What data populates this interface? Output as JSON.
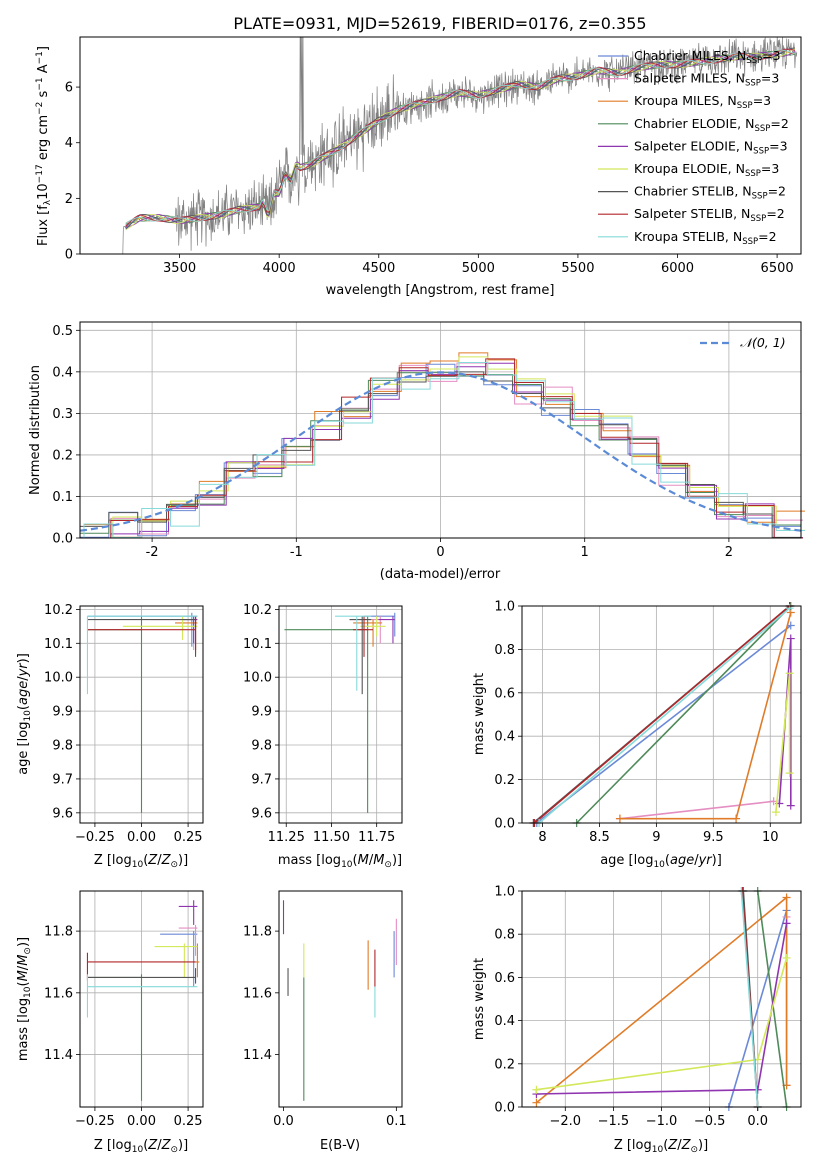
{
  "figure": {
    "title": "PLATE=0931, MJD=52619, FIBERID=0176, z=0.355",
    "colors": {
      "Chabrier MILES": "#6a89d6",
      "Salpeter MILES": "#e48ec2",
      "Kroupa MILES": "#e07b28",
      "Chabrier ELODIE": "#4f8a5a",
      "Salpeter ELODIE": "#9035b0",
      "Kroupa ELODIE": "#d3e85a",
      "Chabrier STELIB": "#555555",
      "Salpeter STELIB": "#b0272b",
      "Kroupa STELIB": "#86dada",
      "normal": "#5b8bd6"
    }
  },
  "chart_data": [
    {
      "type": "line",
      "panel": "spectrum",
      "xlabel": "wavelength [Angstrom, rest frame]",
      "ylabel": "Flux [f_λ10^-17 erg cm^-2 s^-1 A^-1]",
      "xlim": [
        3000,
        6620
      ],
      "ylim": [
        0,
        7.8
      ],
      "xticks": [
        3500,
        4000,
        4500,
        5000,
        5500,
        6000,
        6500
      ],
      "yticks": [
        0,
        2,
        4,
        6
      ],
      "grid": false,
      "legend_position": "top-right",
      "legend": [
        {
          "name": "Chabrier MILES, N",
          "sub": "SSP",
          "suffix": "=3"
        },
        {
          "name": "Salpeter MILES, N",
          "sub": "SSP",
          "suffix": "=3"
        },
        {
          "name": "Kroupa MILES, N",
          "sub": "SSP",
          "suffix": "=3"
        },
        {
          "name": "Chabrier ELODIE, N",
          "sub": "SSP",
          "suffix": "=2"
        },
        {
          "name": "Salpeter ELODIE, N",
          "sub": "SSP",
          "suffix": "=3"
        },
        {
          "name": "Kroupa ELODIE, N",
          "sub": "SSP",
          "suffix": "=3"
        },
        {
          "name": "Chabrier STELIB, N",
          "sub": "SSP",
          "suffix": "=2"
        },
        {
          "name": "Salpeter STELIB, N",
          "sub": "SSP",
          "suffix": "=2"
        },
        {
          "name": "Kroupa STELIB, N",
          "sub": "SSP",
          "suffix": "=2"
        }
      ],
      "continuum": {
        "x": [
          3210,
          3300,
          3400,
          3500,
          3600,
          3700,
          3800,
          3900,
          3950,
          4000,
          4050,
          4100,
          4150,
          4200,
          4300,
          4400,
          4500,
          4600,
          4700,
          4800,
          4900,
          5000,
          5100,
          5200,
          5300,
          5400,
          5500,
          5600,
          5700,
          5800,
          5900,
          6000,
          6100,
          6200,
          6300,
          6400,
          6500,
          6600
        ],
        "y": [
          0.9,
          1.3,
          1.3,
          1.2,
          1.3,
          1.4,
          1.6,
          1.7,
          1.6,
          2.4,
          2.8,
          3.1,
          3.2,
          3.4,
          3.8,
          4.3,
          4.8,
          5.2,
          5.4,
          5.6,
          5.8,
          5.7,
          5.9,
          6.1,
          6.0,
          6.3,
          6.4,
          6.6,
          6.5,
          6.7,
          6.8,
          6.8,
          6.9,
          7.0,
          7.1,
          7.1,
          7.2,
          7.3
        ]
      }
    },
    {
      "type": "line",
      "panel": "residual-histogram",
      "xlabel": "(data-model)/error",
      "ylabel": "Normed distribution",
      "xlim": [
        -2.5,
        2.5
      ],
      "ylim": [
        0,
        0.52
      ],
      "xticks": [
        -2,
        -1,
        0,
        1,
        2
      ],
      "yticks": [
        0.0,
        0.1,
        0.2,
        0.3,
        0.4,
        0.5
      ],
      "grid": true,
      "legend_position": "top-right",
      "legend": [
        {
          "name": "𝒩(0, 1)"
        }
      ],
      "bins": [
        -2.5,
        -2.3,
        -2.1,
        -1.9,
        -1.7,
        -1.5,
        -1.3,
        -1.1,
        -0.9,
        -0.7,
        -0.5,
        -0.3,
        -0.1,
        0.1,
        0.3,
        0.5,
        0.7,
        0.9,
        1.1,
        1.3,
        1.5,
        1.7,
        1.9,
        2.1,
        2.3,
        2.5
      ],
      "histogram_values": [
        0.01,
        0.03,
        0.04,
        0.06,
        0.11,
        0.15,
        0.17,
        0.21,
        0.27,
        0.31,
        0.36,
        0.39,
        0.41,
        0.42,
        0.4,
        0.35,
        0.33,
        0.3,
        0.26,
        0.21,
        0.15,
        0.12,
        0.08,
        0.06,
        0.03
      ]
    },
    {
      "type": "scatter",
      "panel": "age-vs-Z",
      "xlabel": "Z [log10(Z/Z⊙)]",
      "ylabel": "age [log10(age/yr)]",
      "xlim": [
        -0.33,
        0.33
      ],
      "ylim": [
        9.57,
        10.21
      ],
      "xticks": [
        -0.25,
        0.0,
        0.25
      ],
      "xticklabels": [
        "−0.25",
        "0.00",
        "0.25"
      ],
      "yticks": [
        9.6,
        9.7,
        9.8,
        9.9,
        10.0,
        10.1,
        10.2
      ],
      "grid": true
    },
    {
      "type": "scatter",
      "panel": "age-vs-mass",
      "xlabel": "mass [log10(M/M⊙)]",
      "xlim": [
        11.21,
        11.89
      ],
      "ylim": [
        9.57,
        10.21
      ],
      "xticks": [
        11.25,
        11.5,
        11.75
      ],
      "xticklabels": [
        "11.25",
        "11.50",
        "11.75"
      ],
      "yticks": [
        9.6,
        9.7,
        9.8,
        9.9,
        10.0,
        10.1,
        10.2
      ],
      "grid": true
    },
    {
      "type": "line",
      "panel": "weight-vs-age",
      "xlabel": "age [log10(age/yr)]",
      "ylabel": "mass weight",
      "xlim": [
        7.82,
        10.27
      ],
      "ylim": [
        0,
        1.0
      ],
      "xticks": [
        8.0,
        8.5,
        9.0,
        9.5,
        10.0
      ],
      "yticks": [
        0.0,
        0.2,
        0.4,
        0.6,
        0.8,
        1.0
      ],
      "grid": true,
      "series": [
        {
          "key": "Chabrier MILES",
          "x": [
            7.95,
            10.18
          ],
          "y": [
            0.0,
            0.91
          ]
        },
        {
          "key": "Salpeter MILES",
          "x": [
            8.68,
            10.03
          ],
          "y": [
            0.02,
            0.1
          ]
        },
        {
          "key": "Kroupa MILES",
          "x": [
            8.68,
            9.7,
            10.18
          ],
          "y": [
            0.02,
            0.02,
            0.97
          ]
        },
        {
          "key": "Chabrier ELODIE",
          "x": [
            8.3,
            10.18
          ],
          "y": [
            0.0,
            1.0
          ]
        },
        {
          "key": "Salpeter ELODIE",
          "x": [
            10.08,
            10.18,
            10.18
          ],
          "y": [
            0.09,
            0.85,
            0.08
          ]
        },
        {
          "key": "Kroupa ELODIE",
          "x": [
            10.05,
            10.17,
            10.17
          ],
          "y": [
            0.05,
            0.69,
            0.23
          ]
        },
        {
          "key": "Chabrier STELIB",
          "x": [
            7.92,
            10.17
          ],
          "y": [
            0.0,
            1.0
          ]
        },
        {
          "key": "Salpeter STELIB",
          "x": [
            7.93,
            10.17
          ],
          "y": [
            0.0,
            1.0
          ]
        },
        {
          "key": "Kroupa STELIB",
          "x": [
            7.97,
            10.17
          ],
          "y": [
            0.0,
            0.99
          ]
        }
      ]
    },
    {
      "type": "scatter",
      "panel": "mass-vs-Z",
      "xlabel": "Z [log10(Z/Z⊙)]",
      "ylabel": "mass [log10(M/M⊙)]",
      "xlim": [
        -0.33,
        0.33
      ],
      "ylim": [
        11.23,
        11.93
      ],
      "xticks": [
        -0.25,
        0.0,
        0.25
      ],
      "xticklabels": [
        "−0.25",
        "0.00",
        "0.25"
      ],
      "yticks": [
        11.4,
        11.6,
        11.8
      ],
      "grid": true
    },
    {
      "type": "scatter",
      "panel": "mass-vs-EBV",
      "xlabel": "E(B-V)",
      "xlim": [
        -0.004,
        0.105
      ],
      "ylim": [
        11.23,
        11.93
      ],
      "xticks": [
        0.0,
        0.1
      ],
      "xticklabels": [
        "0.0",
        "0.1"
      ],
      "yticks": [
        11.4,
        11.6,
        11.8
      ],
      "grid": false
    },
    {
      "type": "line",
      "panel": "weight-vs-Z",
      "xlabel": "Z [log10(Z/Z⊙)]",
      "ylabel": "mass weight",
      "xlim": [
        -2.45,
        0.45
      ],
      "ylim": [
        0,
        1.0
      ],
      "xticks": [
        -2.0,
        -1.5,
        -1.0,
        -0.5,
        0.0
      ],
      "xticklabels": [
        "−2.0",
        "−1.5",
        "−1.0",
        "−0.5",
        "0.0"
      ],
      "yticks": [
        0.0,
        0.2,
        0.4,
        0.6,
        0.8,
        1.0
      ],
      "grid": true,
      "series": [
        {
          "key": "Chabrier MILES",
          "x": [
            -0.3,
            0.3
          ],
          "y": [
            0.0,
            0.91
          ]
        },
        {
          "key": "Salpeter MILES",
          "x": [
            0.3,
            0.3
          ],
          "y": [
            0.1,
            0.88
          ]
        },
        {
          "key": "Kroupa MILES",
          "x": [
            -2.3,
            0.3,
            0.3
          ],
          "y": [
            0.02,
            0.97,
            0.1
          ]
        },
        {
          "key": "Chabrier ELODIE",
          "x": [
            0.0,
            0.3
          ],
          "y": [
            1.0,
            0.0
          ]
        },
        {
          "key": "Salpeter ELODIE",
          "x": [
            -2.3,
            0.0,
            0.3
          ],
          "y": [
            0.06,
            0.08,
            0.85
          ]
        },
        {
          "key": "Kroupa ELODIE",
          "x": [
            -2.3,
            0.0,
            0.3
          ],
          "y": [
            0.08,
            0.22,
            0.69
          ]
        },
        {
          "key": "Chabrier STELIB",
          "x": [
            -0.15,
            0.0
          ],
          "y": [
            1.0,
            0.0
          ]
        },
        {
          "key": "Salpeter STELIB",
          "x": [
            -0.16,
            0.0
          ],
          "y": [
            1.0,
            0.0
          ]
        },
        {
          "key": "Kroupa STELIB",
          "x": [
            -0.17,
            0.0
          ],
          "y": [
            1.0,
            0.0
          ]
        }
      ]
    }
  ]
}
